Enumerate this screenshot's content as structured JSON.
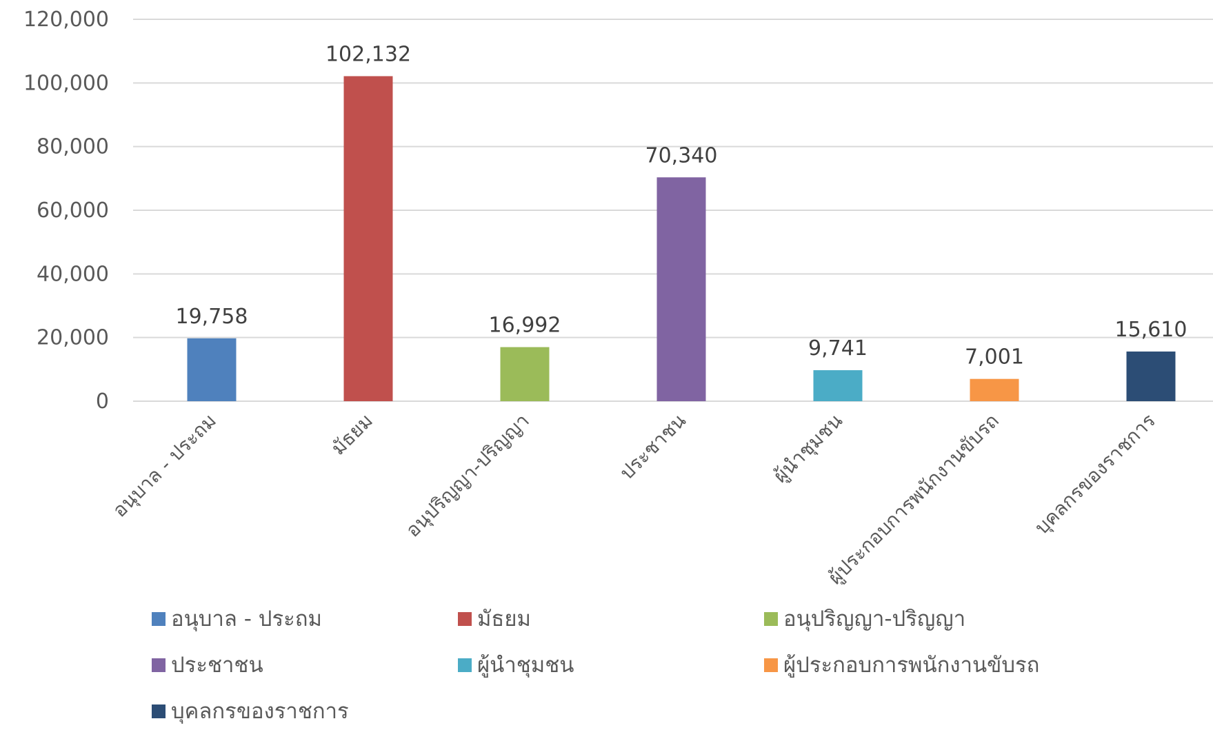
{
  "chart_data": {
    "type": "bar",
    "title": "",
    "xlabel": "",
    "ylabel": "",
    "ylim": [
      0,
      120000
    ],
    "yticks": [
      0,
      20000,
      40000,
      60000,
      80000,
      100000,
      120000
    ],
    "ytick_labels": [
      "0",
      "20,000",
      "40,000",
      "60,000",
      "80,000",
      "100,000",
      "120,000"
    ],
    "grid": "horizontal",
    "legend_position": "bottom",
    "categories": [
      "อนุบาล - ประถม",
      "มัธยม",
      "อนุปริญญา-ปริญญา",
      "ประชาชน",
      "ผู้นำชุมชน",
      "ผู้ประกอบการพนักงานขับรถ",
      "บุคลกรของราชการ"
    ],
    "values": [
      19758,
      102132,
      16992,
      70340,
      9741,
      7001,
      15610
    ],
    "data_labels": [
      "19,758",
      "102,132",
      "16,992",
      "70,340",
      "9,741",
      "7,001",
      "15,610"
    ],
    "colors": [
      "#4f81bd",
      "#c0504d",
      "#9bbb59",
      "#8064a2",
      "#4bacc6",
      "#f79646",
      "#2c4d75"
    ],
    "legend": [
      "อนุบาล - ประถม",
      "มัธยม",
      "อนุปริญญา-ปริญญา",
      "ประชาชน",
      "ผู้นำชุมชน",
      "ผู้ประกอบการพนักงานขับรถ",
      "บุคลกรของราชการ"
    ]
  }
}
